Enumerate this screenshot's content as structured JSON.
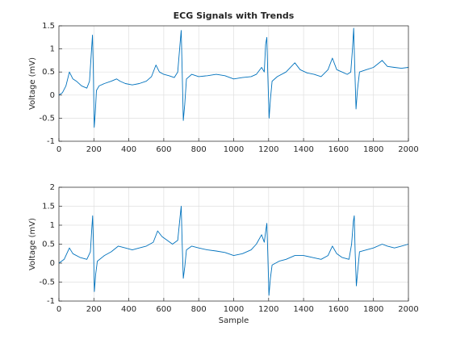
{
  "chart_data": [
    {
      "type": "line",
      "title": "ECG Signals with Trends",
      "ylabel": "Voltage (mV)",
      "color": "#0072bd",
      "grid": true,
      "xlim": [
        0,
        2000
      ],
      "xticks": [
        0,
        200,
        400,
        600,
        800,
        1000,
        1200,
        1400,
        1600,
        1800,
        2000
      ],
      "ylim": [
        -1,
        1.5
      ],
      "yticks": [
        -1,
        -0.5,
        0,
        0.5,
        1,
        1.5
      ],
      "x": [
        0,
        20,
        40,
        60,
        80,
        100,
        130,
        160,
        175,
        185,
        192,
        197,
        202,
        208,
        215,
        230,
        260,
        300,
        330,
        350,
        380,
        420,
        460,
        500,
        530,
        555,
        575,
        600,
        630,
        660,
        680,
        693,
        700,
        705,
        712,
        720,
        730,
        760,
        800,
        850,
        900,
        950,
        1000,
        1050,
        1100,
        1130,
        1160,
        1175,
        1183,
        1190,
        1195,
        1203,
        1210,
        1220,
        1250,
        1300,
        1350,
        1380,
        1420,
        1460,
        1500,
        1540,
        1565,
        1590,
        1620,
        1650,
        1670,
        1680,
        1687,
        1693,
        1700,
        1708,
        1720,
        1760,
        1800,
        1850,
        1880,
        1920,
        1960,
        2000
      ],
      "values": [
        0,
        0.05,
        0.2,
        0.5,
        0.35,
        0.3,
        0.2,
        0.15,
        0.3,
        0.9,
        1.3,
        0.5,
        -0.7,
        -0.4,
        0.1,
        0.2,
        0.25,
        0.3,
        0.35,
        0.3,
        0.25,
        0.22,
        0.25,
        0.3,
        0.4,
        0.65,
        0.5,
        0.45,
        0.42,
        0.38,
        0.5,
        1.1,
        1.4,
        0.6,
        -0.55,
        -0.2,
        0.35,
        0.45,
        0.4,
        0.42,
        0.45,
        0.42,
        0.35,
        0.38,
        0.4,
        0.45,
        0.6,
        0.5,
        1.1,
        1.25,
        0.5,
        -0.5,
        -0.1,
        0.3,
        0.4,
        0.5,
        0.7,
        0.55,
        0.48,
        0.45,
        0.4,
        0.55,
        0.8,
        0.55,
        0.5,
        0.45,
        0.5,
        1.0,
        1.45,
        0.6,
        -0.3,
        0.1,
        0.5,
        0.55,
        0.6,
        0.75,
        0.62,
        0.6,
        0.58,
        0.6
      ]
    },
    {
      "type": "line",
      "xlabel": "Sample",
      "ylabel": "Voltage (mV)",
      "color": "#0072bd",
      "grid": true,
      "xlim": [
        0,
        2000
      ],
      "xticks": [
        0,
        200,
        400,
        600,
        800,
        1000,
        1200,
        1400,
        1600,
        1800,
        2000
      ],
      "ylim": [
        -1,
        2
      ],
      "yticks": [
        -1,
        -0.5,
        0,
        0.5,
        1,
        1.5,
        2
      ],
      "x": [
        0,
        30,
        60,
        80,
        120,
        160,
        180,
        188,
        193,
        198,
        203,
        210,
        220,
        260,
        300,
        340,
        380,
        420,
        460,
        500,
        540,
        565,
        590,
        620,
        650,
        680,
        693,
        700,
        705,
        712,
        720,
        730,
        760,
        800,
        850,
        900,
        950,
        1000,
        1050,
        1100,
        1130,
        1160,
        1175,
        1185,
        1190,
        1195,
        1202,
        1210,
        1220,
        1260,
        1300,
        1350,
        1400,
        1450,
        1500,
        1540,
        1565,
        1590,
        1620,
        1660,
        1675,
        1685,
        1690,
        1695,
        1702,
        1710,
        1720,
        1760,
        1800,
        1850,
        1880,
        1920,
        1960,
        2000
      ],
      "values": [
        0,
        0.1,
        0.4,
        0.25,
        0.15,
        0.1,
        0.3,
        0.9,
        1.25,
        0.4,
        -0.75,
        -0.3,
        0.05,
        0.2,
        0.3,
        0.45,
        0.4,
        0.35,
        0.4,
        0.45,
        0.55,
        0.85,
        0.7,
        0.6,
        0.5,
        0.6,
        1.2,
        1.5,
        0.6,
        -0.4,
        -0.1,
        0.35,
        0.45,
        0.4,
        0.35,
        0.32,
        0.28,
        0.2,
        0.25,
        0.35,
        0.5,
        0.75,
        0.55,
        0.9,
        1.05,
        0.3,
        -0.85,
        -0.4,
        -0.05,
        0.05,
        0.1,
        0.2,
        0.2,
        0.15,
        0.1,
        0.2,
        0.45,
        0.25,
        0.15,
        0.1,
        0.5,
        1.1,
        1.25,
        0.3,
        -0.6,
        -0.2,
        0.3,
        0.35,
        0.4,
        0.5,
        0.45,
        0.4,
        0.45,
        0.5
      ]
    }
  ]
}
